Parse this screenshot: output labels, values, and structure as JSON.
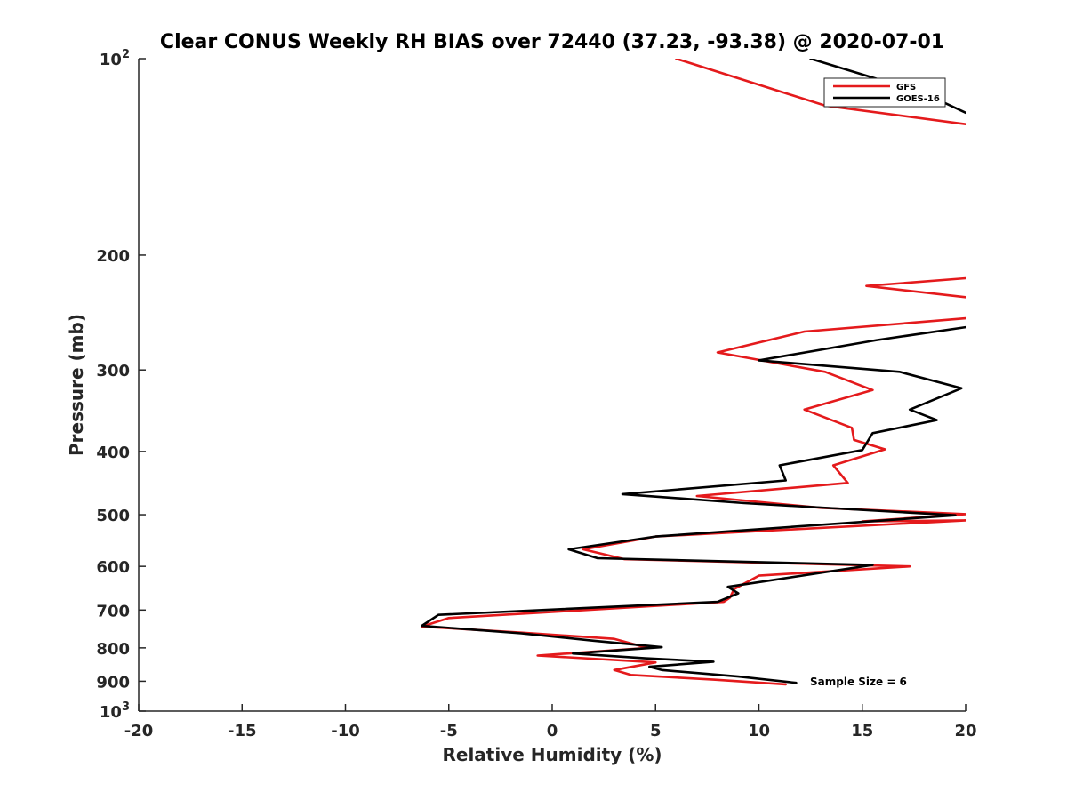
{
  "chart_data": {
    "type": "line",
    "title": "Clear CONUS Weekly RH BIAS over 72440 (37.23, -93.38) @ 2020-07-01",
    "xlabel": "Relative Humidity (%)",
    "ylabel": "Pressure (mb)",
    "xlim": [
      -20,
      20
    ],
    "ylim": [
      100,
      1000
    ],
    "y_scale": "log",
    "y_reversed": true,
    "grid": false,
    "legend_position": "top-right",
    "x_ticks": [
      "-20",
      "-15",
      "-10",
      "-5",
      "0",
      "5",
      "10",
      "15",
      "20"
    ],
    "y_ticks": [
      {
        "value": 100,
        "base": "10",
        "exp": "2"
      },
      {
        "value": 200,
        "label": "200"
      },
      {
        "value": 300,
        "label": "300"
      },
      {
        "value": 400,
        "label": "400"
      },
      {
        "value": 500,
        "label": "500"
      },
      {
        "value": 600,
        "label": "600"
      },
      {
        "value": 700,
        "label": "700"
      },
      {
        "value": 800,
        "label": "800"
      },
      {
        "value": 900,
        "label": "900"
      },
      {
        "value": 1000,
        "base": "10",
        "exp": "3"
      }
    ],
    "series": [
      {
        "name": "GFS",
        "color": "#e41a1c",
        "points": [
          [
            6.0,
            100
          ],
          [
            13.2,
            118
          ],
          [
            20.0,
            126
          ],
          [
            null,
            null
          ],
          [
            20.0,
            217
          ],
          [
            15.2,
            223
          ],
          [
            20.0,
            232
          ],
          [
            null,
            null
          ],
          [
            20.0,
            250
          ],
          [
            12.2,
            262
          ],
          [
            8.0,
            282
          ],
          [
            13.2,
            302
          ],
          [
            15.5,
            322
          ],
          [
            12.2,
            345
          ],
          [
            14.5,
            368
          ],
          [
            14.6,
            384
          ],
          [
            16.1,
            397
          ],
          [
            13.6,
            420
          ],
          [
            14.3,
            447
          ],
          [
            7.0,
            468
          ],
          [
            13.0,
            488
          ],
          [
            20.0,
            499
          ],
          [
            15.0,
            512
          ],
          [
            20.0,
            510
          ],
          [
            5.0,
            540
          ],
          [
            1.5,
            565
          ],
          [
            3.5,
            585
          ],
          [
            17.3,
            600
          ],
          [
            10.0,
            620
          ],
          [
            8.8,
            650
          ],
          [
            8.6,
            670
          ],
          [
            8.3,
            680
          ],
          [
            -5.0,
            720
          ],
          [
            -6.3,
            742
          ],
          [
            -1.5,
            758
          ],
          [
            3.0,
            775
          ],
          [
            4.6,
            800
          ],
          [
            -0.7,
            822
          ],
          [
            5.0,
            842
          ],
          [
            3.0,
            865
          ],
          [
            3.8,
            880
          ],
          [
            7.8,
            895
          ],
          [
            11.3,
            910
          ]
        ]
      },
      {
        "name": "GOES-16",
        "color": "#000000",
        "points": [
          [
            12.5,
            100
          ],
          [
            18.0,
            113
          ],
          [
            20.0,
            121
          ],
          [
            null,
            null
          ],
          [
            20.0,
            258
          ],
          [
            15.7,
            270
          ],
          [
            10.0,
            290
          ],
          [
            16.8,
            302
          ],
          [
            19.8,
            320
          ],
          [
            17.3,
            345
          ],
          [
            18.6,
            358
          ],
          [
            15.5,
            375
          ],
          [
            15.0,
            398
          ],
          [
            11.0,
            420
          ],
          [
            11.3,
            443
          ],
          [
            3.4,
            465
          ],
          [
            9.3,
            480
          ],
          [
            19.5,
            501
          ],
          [
            5.0,
            540
          ],
          [
            0.8,
            565
          ],
          [
            2.2,
            583
          ],
          [
            15.5,
            597
          ],
          [
            8.5,
            645
          ],
          [
            9.0,
            660
          ],
          [
            8.0,
            680
          ],
          [
            -5.5,
            712
          ],
          [
            -6.3,
            740
          ],
          [
            -1.5,
            760
          ],
          [
            2.0,
            780
          ],
          [
            5.3,
            798
          ],
          [
            1.0,
            816
          ],
          [
            4.5,
            830
          ],
          [
            7.8,
            840
          ],
          [
            4.7,
            855
          ],
          [
            5.3,
            865
          ],
          [
            9.0,
            885
          ],
          [
            11.8,
            905
          ]
        ]
      }
    ],
    "annotations": [
      "Sample Size = 6"
    ]
  }
}
